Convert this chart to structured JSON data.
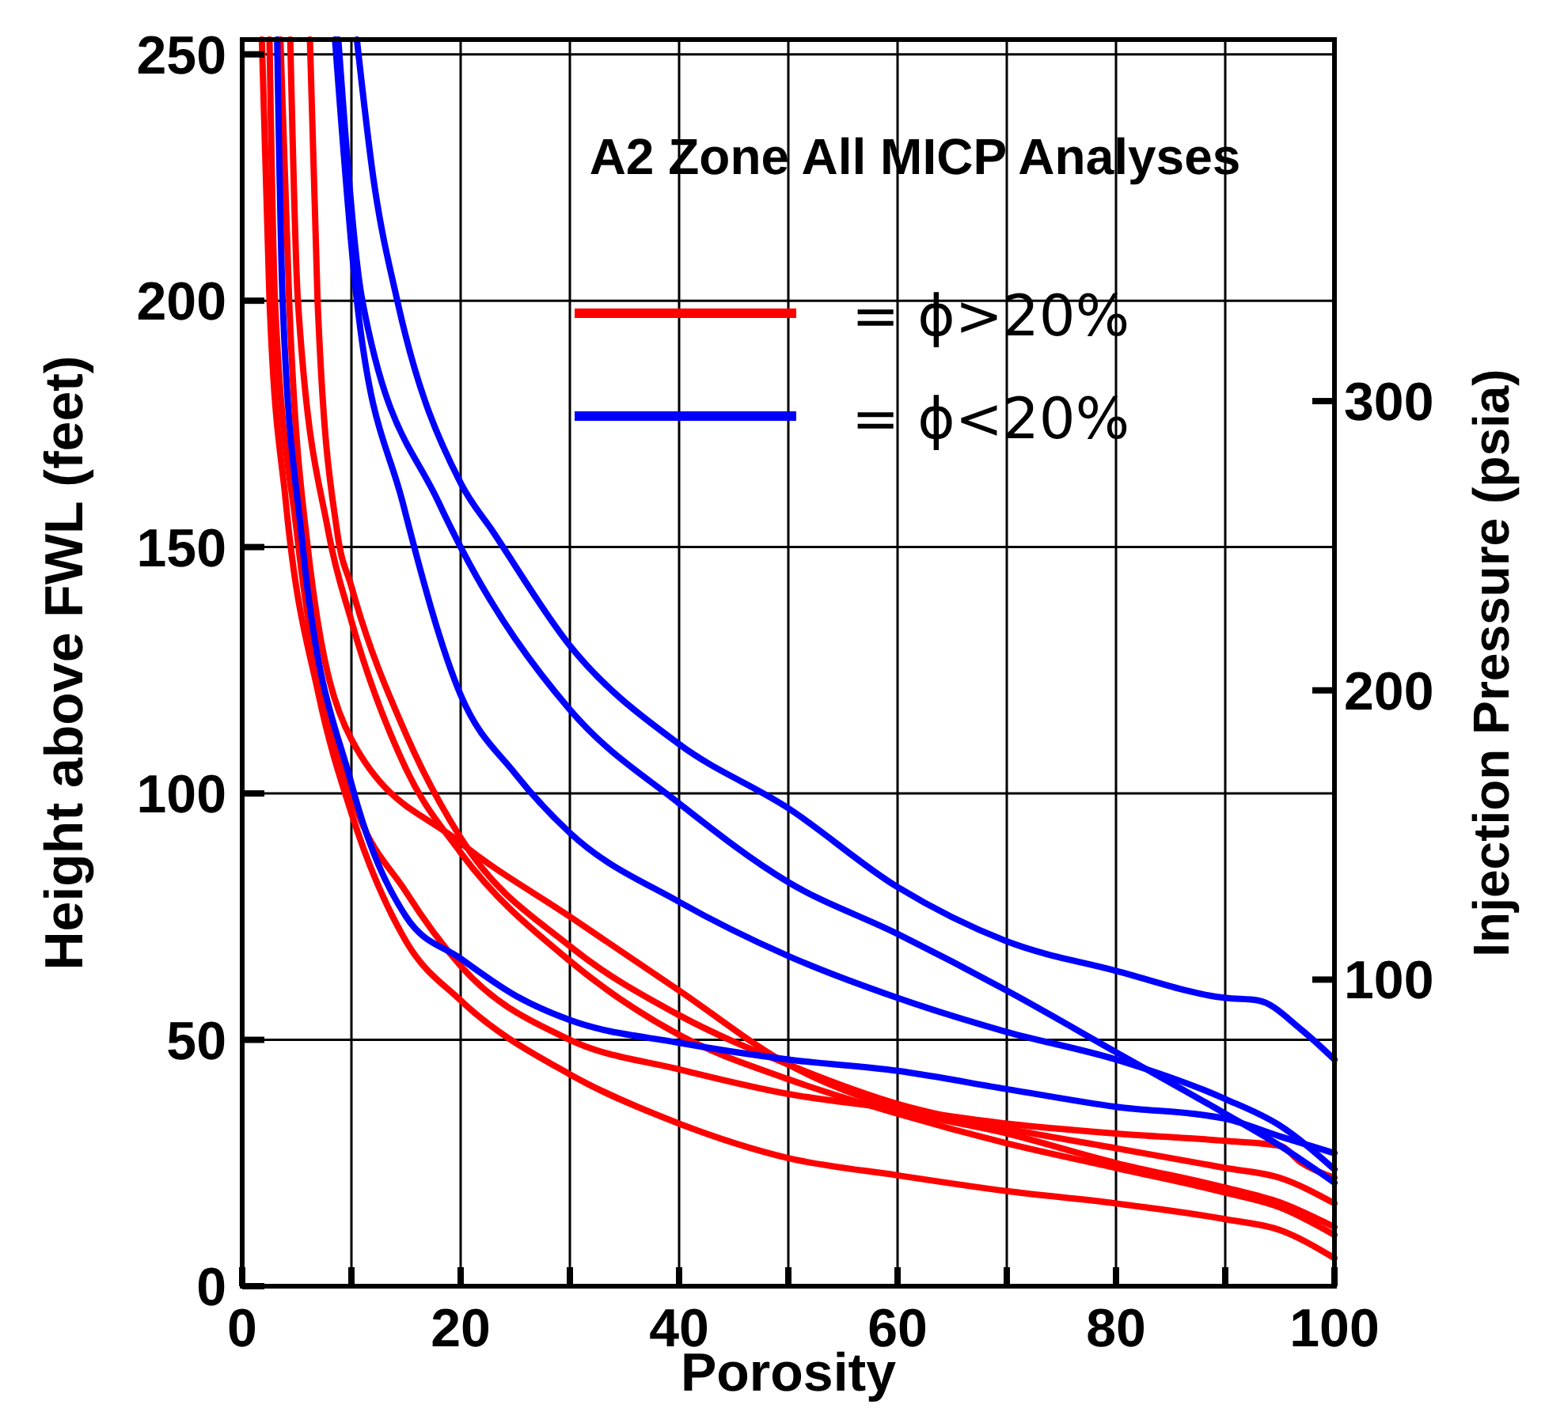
{
  "chart_data": {
    "type": "line",
    "title": "A2 Zone All MICP Analyses",
    "xlabel": "Porosity",
    "ylabel": "Height above FWL (feet)",
    "y2label": "Injection Pressure (psia)",
    "xlim": [
      0,
      100
    ],
    "xticks": [
      0,
      {
        "value": 10,
        "label": null
      },
      20,
      {
        "value": 30,
        "label": null
      },
      40,
      {
        "value": 50,
        "label": null
      },
      60,
      {
        "value": 70,
        "label": null
      },
      80,
      {
        "value": 90,
        "label": null
      },
      100
    ],
    "ylim": [
      0,
      253
    ],
    "yticks": [
      0,
      50,
      100,
      150,
      200,
      250
    ],
    "y2lim": [
      -6,
      425
    ],
    "y2ticks": [
      100,
      200,
      300
    ],
    "grid": true,
    "legend": "top",
    "line_style": "solid",
    "marker": "none",
    "series": [
      {
        "name": "= ϕ>20%",
        "color": "#ff0000",
        "x": [
          1.8,
          2.5,
          4,
          7,
          10,
          15,
          20,
          30,
          40,
          50,
          60,
          70,
          80,
          90,
          95,
          100
        ],
        "values": [
          253,
          200,
          159,
          120,
          96,
          70,
          58,
          43,
          33,
          26,
          22.5,
          19.3,
          16.8,
          13.6,
          11.4,
          5.7
        ]
      },
      {
        "color": "#ff0000",
        "x": [
          2.5,
          3,
          5,
          10,
          15,
          20,
          30,
          40,
          50,
          60,
          70,
          80,
          90,
          95,
          97,
          100
        ],
        "values": [
          253,
          200,
          153,
          100,
          80,
          65,
          50,
          44,
          39,
          36,
          33,
          31,
          29.5,
          28.5,
          25,
          22
        ]
      },
      {
        "color": "#ff0000",
        "x": [
          3.5,
          4.3,
          6,
          10,
          20,
          30,
          40,
          50,
          60,
          70,
          80,
          90,
          95,
          100
        ],
        "values": [
          253,
          200,
          150,
          111,
          90,
          75,
          60,
          45,
          36,
          31,
          25,
          20,
          17,
          12
        ]
      },
      {
        "color": "#ff0000",
        "x": [
          4.4,
          5.1,
          7.9,
          10,
          15,
          20,
          30,
          40,
          50,
          60,
          70,
          80,
          90,
          95,
          100
        ],
        "values": [
          253,
          200,
          153,
          135,
          105,
          88,
          66,
          51,
          42,
          35,
          29,
          24,
          19,
          16,
          10.4
        ]
      },
      {
        "color": "#ff0000",
        "x": [
          6.2,
          6.9,
          8.7,
          10,
          15,
          20,
          30,
          40,
          50,
          60,
          70,
          80,
          90,
          95,
          100
        ],
        "values": [
          253,
          200,
          153,
          142,
          112,
          91,
          69,
          55,
          45,
          37,
          32,
          28,
          24,
          22,
          16.8
        ]
      },
      {
        "name": "= ϕ<20%",
        "color": "#0000ff",
        "x": [
          10.5,
          12,
          14.2,
          20,
          23,
          30,
          40,
          50,
          60,
          70,
          80,
          90,
          93,
          97,
          100
        ],
        "values": [
          253,
          225,
          200,
          163,
          153,
          130,
          110,
          97,
          81,
          70,
          64,
          58.5,
          58,
          52,
          46
        ]
      },
      {
        "color": "#0000ff",
        "x": [
          8.8,
          11,
          18,
          20,
          30,
          40,
          50,
          60,
          70,
          80,
          90,
          95,
          100
        ],
        "values": [
          253,
          200,
          159,
          150,
          117,
          98,
          82,
          71.5,
          60,
          47.5,
          35,
          28.5,
          21
        ]
      },
      {
        "color": "#0000ff",
        "x": [
          8.5,
          10.5,
          14.7,
          20,
          25,
          30,
          40,
          50,
          60,
          70,
          80,
          90,
          95,
          100
        ],
        "values": [
          253,
          200,
          159,
          120,
          104,
          92,
          78,
          67,
          58.5,
          51.6,
          46,
          38,
          32.6,
          23.7
        ]
      },
      {
        "color": "#0000ff",
        "x": [
          3.2,
          3.7,
          5.4,
          10,
          15,
          20,
          25,
          30,
          40,
          50,
          60,
          70,
          80,
          90,
          95,
          100
        ],
        "values": [
          253,
          200,
          153,
          102,
          75,
          66.5,
          59,
          54,
          49.4,
          46,
          43.7,
          40,
          36.4,
          34,
          30.4,
          27
        ]
      }
    ]
  }
}
